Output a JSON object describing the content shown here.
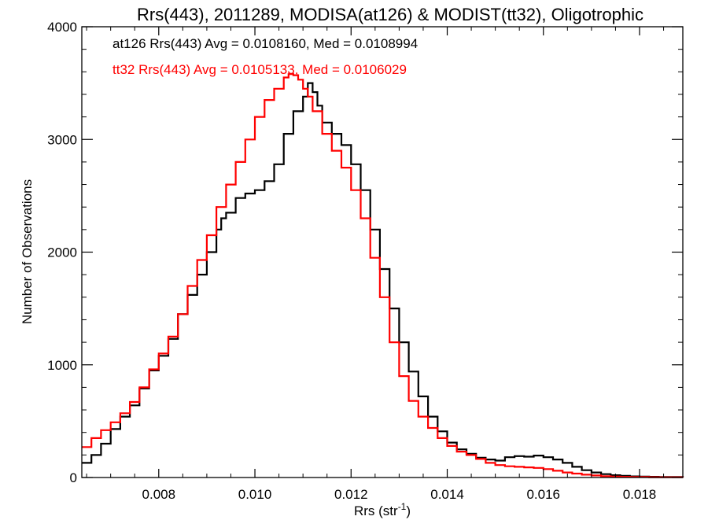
{
  "chart_data": {
    "type": "line",
    "title": "Rrs(443), 2011289, MODISA(at126) & MODIST(tt32), Oligotrophic",
    "xlabel": "Rrs (str",
    "xlabel_sup": "-1",
    "xlabel_close": ")",
    "ylabel": "Number of Observations",
    "xlim": [
      0.0064,
      0.0189
    ],
    "ylim": [
      0,
      4000
    ],
    "x_ticks": [
      0.008,
      0.01,
      0.012,
      0.014,
      0.016,
      0.018
    ],
    "x_tick_labels": [
      "0.008",
      "0.010",
      "0.012",
      "0.014",
      "0.016",
      "0.018"
    ],
    "y_ticks": [
      0,
      1000,
      2000,
      3000,
      4000
    ],
    "y_tick_labels": [
      "0",
      "1000",
      "2000",
      "3000",
      "4000"
    ],
    "legend_placement": "top-left",
    "grid": false,
    "series": [
      {
        "name": "at126 Rrs(443) Avg = 0.0108160, Med = 0.0108994",
        "color": "#000000",
        "x": [
          0.0064,
          0.0066,
          0.0068,
          0.007,
          0.0072,
          0.0074,
          0.0076,
          0.0078,
          0.008,
          0.0082,
          0.0084,
          0.0086,
          0.0088,
          0.009,
          0.0092,
          0.0093,
          0.0094,
          0.0096,
          0.0098,
          0.01,
          0.0102,
          0.0104,
          0.0106,
          0.0108,
          0.011,
          0.0111,
          0.0112,
          0.0113,
          0.0114,
          0.0116,
          0.0118,
          0.012,
          0.0122,
          0.0124,
          0.0126,
          0.0128,
          0.013,
          0.0132,
          0.0134,
          0.0136,
          0.0138,
          0.014,
          0.0142,
          0.0144,
          0.0146,
          0.0148,
          0.015,
          0.0152,
          0.0154,
          0.0156,
          0.0158,
          0.016,
          0.0162,
          0.0164,
          0.0166,
          0.0168,
          0.017,
          0.0172,
          0.0174,
          0.0176,
          0.0178,
          0.018,
          0.0182,
          0.0184,
          0.0186,
          0.0189
        ],
        "y": [
          130,
          200,
          300,
          430,
          540,
          640,
          790,
          950,
          1080,
          1230,
          1450,
          1620,
          1800,
          2000,
          2200,
          2300,
          2350,
          2480,
          2520,
          2550,
          2630,
          2780,
          3050,
          3250,
          3380,
          3500,
          3420,
          3300,
          3150,
          3050,
          2950,
          2780,
          2550,
          2200,
          1850,
          1500,
          1200,
          940,
          720,
          540,
          410,
          310,
          250,
          210,
          175,
          160,
          150,
          180,
          190,
          185,
          195,
          180,
          160,
          130,
          95,
          65,
          45,
          30,
          20,
          15,
          10,
          8,
          6,
          5,
          4,
          3
        ]
      },
      {
        "name": "tt32 Rrs(443) Avg = 0.0105133, Med = 0.0106029",
        "color": "#ff0000",
        "x": [
          0.0064,
          0.0066,
          0.0068,
          0.007,
          0.0072,
          0.0074,
          0.0076,
          0.0078,
          0.008,
          0.0082,
          0.0084,
          0.0086,
          0.0088,
          0.009,
          0.0092,
          0.0094,
          0.0096,
          0.0098,
          0.01,
          0.0102,
          0.0104,
          0.0106,
          0.0107,
          0.0108,
          0.0109,
          0.011,
          0.0111,
          0.0112,
          0.0114,
          0.0116,
          0.0118,
          0.012,
          0.0122,
          0.0124,
          0.0126,
          0.0128,
          0.013,
          0.0132,
          0.0134,
          0.0136,
          0.0138,
          0.014,
          0.0142,
          0.0144,
          0.0146,
          0.0148,
          0.015,
          0.0152,
          0.0154,
          0.0156,
          0.0158,
          0.016,
          0.0162,
          0.0164,
          0.0166,
          0.0168,
          0.017,
          0.0172,
          0.0174,
          0.0176,
          0.0178,
          0.018,
          0.0182,
          0.0184,
          0.0186,
          0.0189
        ],
        "y": [
          270,
          350,
          420,
          490,
          570,
          670,
          800,
          960,
          1100,
          1250,
          1450,
          1700,
          1930,
          2150,
          2400,
          2600,
          2800,
          3000,
          3200,
          3350,
          3450,
          3550,
          3580,
          3570,
          3530,
          3450,
          3380,
          3250,
          3050,
          2900,
          2750,
          2550,
          2300,
          1950,
          1600,
          1200,
          900,
          680,
          540,
          440,
          350,
          280,
          230,
          200,
          165,
          130,
          110,
          100,
          95,
          90,
          85,
          75,
          60,
          45,
          35,
          25,
          18,
          12,
          8,
          6,
          5,
          4,
          3,
          2,
          2,
          1
        ]
      }
    ]
  }
}
